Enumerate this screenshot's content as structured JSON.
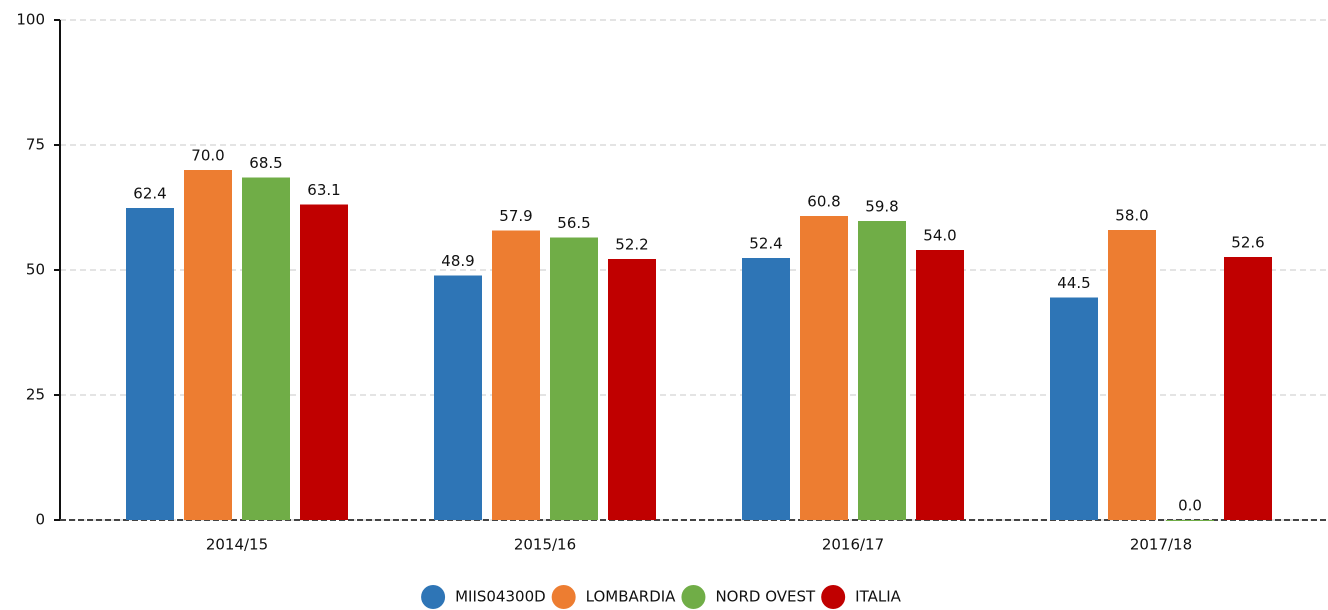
{
  "chart_data": {
    "type": "bar",
    "categories": [
      "2014/15",
      "2015/16",
      "2016/17",
      "2017/18"
    ],
    "series": [
      {
        "name": "MIIS04300D",
        "color": "#2e75b6",
        "values": [
          62.4,
          48.9,
          52.4,
          44.5
        ],
        "value_labels": [
          "62.4",
          "48.9",
          "52.4",
          "44.5"
        ]
      },
      {
        "name": "LOMBARDIA",
        "color": "#ed7d31",
        "values": [
          70,
          57.9,
          60.8,
          58
        ],
        "value_labels": [
          "70.0",
          "57.9",
          "60.8",
          "58.0"
        ]
      },
      {
        "name": "NORD OVEST",
        "color": "#70ad47",
        "values": [
          68.5,
          56.5,
          59.8,
          0
        ],
        "value_labels": [
          "68.5",
          "56.5",
          "59.8",
          "0.0"
        ]
      },
      {
        "name": "ITALIA",
        "color": "#c00000",
        "values": [
          63.1,
          52.2,
          54,
          52.6
        ],
        "value_labels": [
          "63.1",
          "52.2",
          "54.0",
          "52.6"
        ]
      }
    ],
    "ylim": [
      0,
      100
    ],
    "yticks": [
      0,
      25,
      50,
      75,
      100
    ],
    "grid": true,
    "legend": "bottom"
  }
}
